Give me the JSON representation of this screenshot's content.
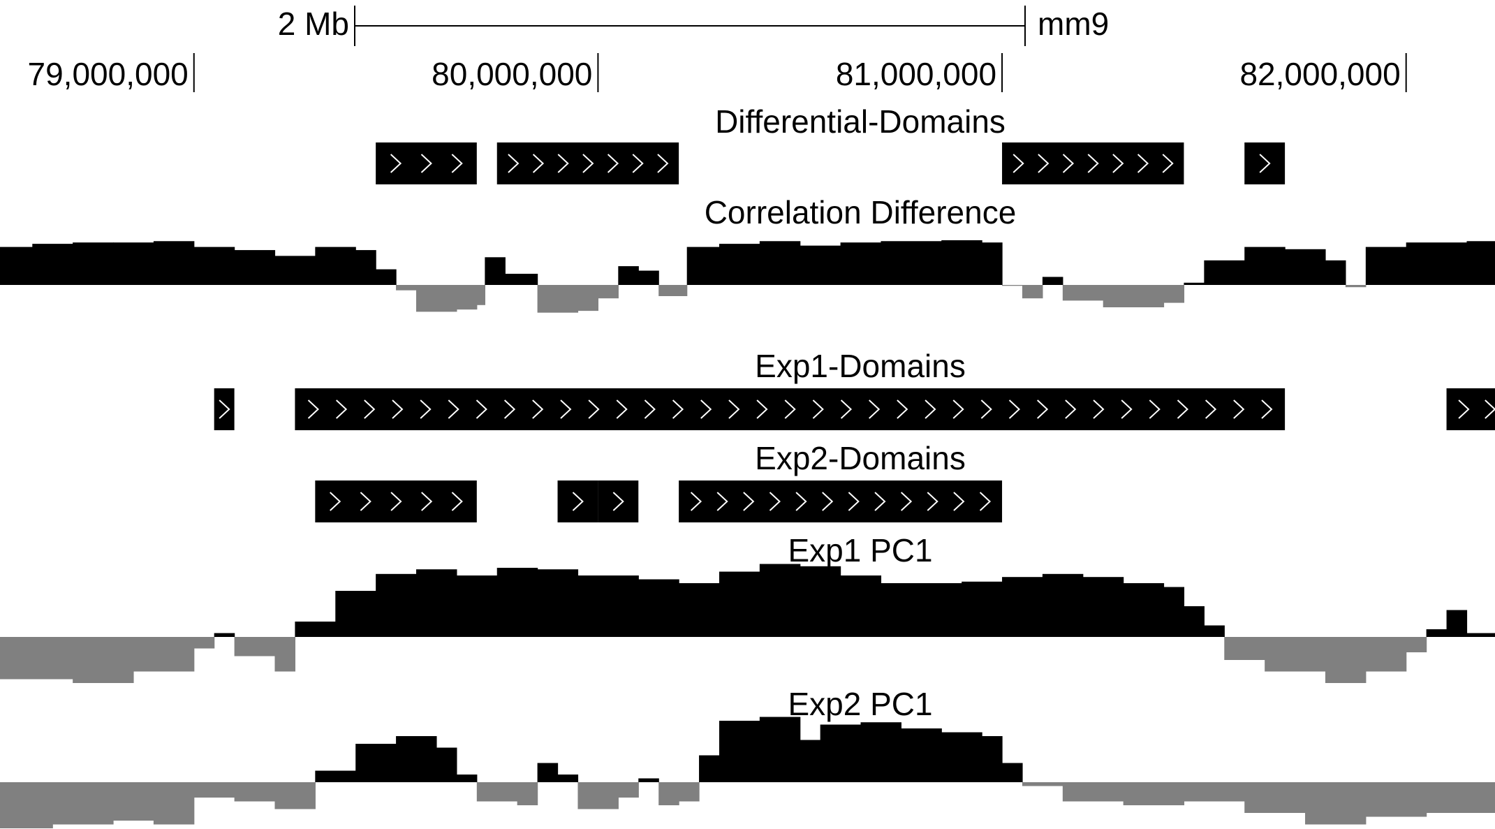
{
  "scale_bar": {
    "label": "2 Mb",
    "assembly": "mm9"
  },
  "ruler": {
    "ticks": [
      "79,000,000",
      "80,000,000",
      "81,000,000",
      "82,000,000"
    ]
  },
  "colors": {
    "positive": "#000000",
    "negative": "#808080",
    "chevron": "#ffffff"
  },
  "tracks": {
    "differential_domains": {
      "title": "Differential-Domains",
      "features": [
        {
          "start": 79.45,
          "end": 79.7,
          "chevrons": 3
        },
        {
          "start": 79.75,
          "end": 80.2,
          "chevrons": 7
        },
        {
          "start": 81.0,
          "end": 81.45,
          "chevrons": 7
        },
        {
          "start": 81.6,
          "end": 81.7,
          "chevrons": 1
        }
      ]
    },
    "correlation_difference": {
      "title": "Correlation Difference",
      "points": [
        [
          78.52,
          0.85
        ],
        [
          78.6,
          0.92
        ],
        [
          78.7,
          0.95
        ],
        [
          78.8,
          0.95
        ],
        [
          78.9,
          0.98
        ],
        [
          79.0,
          0.85
        ],
        [
          79.1,
          0.78
        ],
        [
          79.2,
          0.65
        ],
        [
          79.3,
          0.85
        ],
        [
          79.4,
          0.78
        ],
        [
          79.45,
          0.35
        ],
        [
          79.5,
          -0.12
        ],
        [
          79.55,
          -0.6
        ],
        [
          79.65,
          -0.55
        ],
        [
          79.7,
          -0.45
        ],
        [
          79.72,
          0.62
        ],
        [
          79.77,
          0.25
        ],
        [
          79.85,
          -0.62
        ],
        [
          79.95,
          -0.58
        ],
        [
          80.0,
          -0.3
        ],
        [
          80.05,
          0.42
        ],
        [
          80.1,
          0.32
        ],
        [
          80.15,
          -0.25
        ],
        [
          80.2,
          -0.25
        ],
        [
          80.22,
          0.85
        ],
        [
          80.3,
          0.92
        ],
        [
          80.4,
          0.98
        ],
        [
          80.5,
          0.88
        ],
        [
          80.6,
          0.95
        ],
        [
          80.7,
          0.98
        ],
        [
          80.85,
          1.0
        ],
        [
          80.95,
          0.95
        ],
        [
          81.0,
          -0.02
        ],
        [
          81.05,
          -0.3
        ],
        [
          81.1,
          0.18
        ],
        [
          81.15,
          -0.35
        ],
        [
          81.25,
          -0.5
        ],
        [
          81.4,
          -0.4
        ],
        [
          81.45,
          0.05
        ],
        [
          81.5,
          0.55
        ],
        [
          81.6,
          0.85
        ],
        [
          81.7,
          0.8
        ],
        [
          81.8,
          0.55
        ],
        [
          81.85,
          -0.05
        ],
        [
          81.9,
          0.85
        ],
        [
          82.0,
          0.95
        ],
        [
          82.15,
          0.98
        ],
        [
          82.22,
          0.98
        ]
      ]
    },
    "exp1_domains": {
      "title": "Exp1-Domains",
      "features": [
        {
          "start": 79.05,
          "end": 79.1,
          "chevrons": 1
        },
        {
          "start": 79.25,
          "end": 81.7,
          "chevrons": 35
        },
        {
          "start": 82.1,
          "end": 82.25,
          "chevrons": 2
        }
      ]
    },
    "exp2_domains": {
      "title": "Exp2-Domains",
      "features": [
        {
          "start": 79.3,
          "end": 79.7,
          "chevrons": 5
        },
        {
          "start": 79.9,
          "end": 80.0,
          "chevrons": 1
        },
        {
          "start": 80.0,
          "end": 80.1,
          "chevrons": 1
        },
        {
          "start": 80.2,
          "end": 81.0,
          "chevrons": 12
        }
      ]
    },
    "exp1_pc1": {
      "title": "Exp1 PC1",
      "points": [
        [
          78.52,
          -0.55
        ],
        [
          78.7,
          -0.6
        ],
        [
          78.85,
          -0.45
        ],
        [
          79.0,
          -0.15
        ],
        [
          79.05,
          0.05
        ],
        [
          79.1,
          -0.25
        ],
        [
          79.2,
          -0.45
        ],
        [
          79.25,
          0.2
        ],
        [
          79.35,
          0.6
        ],
        [
          79.45,
          0.82
        ],
        [
          79.55,
          0.88
        ],
        [
          79.65,
          0.8
        ],
        [
          79.75,
          0.9
        ],
        [
          79.85,
          0.88
        ],
        [
          79.95,
          0.8
        ],
        [
          80.1,
          0.75
        ],
        [
          80.2,
          0.7
        ],
        [
          80.3,
          0.85
        ],
        [
          80.4,
          0.95
        ],
        [
          80.5,
          0.92
        ],
        [
          80.6,
          0.8
        ],
        [
          80.7,
          0.7
        ],
        [
          80.8,
          0.7
        ],
        [
          80.9,
          0.72
        ],
        [
          81.0,
          0.78
        ],
        [
          81.1,
          0.82
        ],
        [
          81.2,
          0.78
        ],
        [
          81.3,
          0.7
        ],
        [
          81.4,
          0.65
        ],
        [
          81.45,
          0.4
        ],
        [
          81.5,
          0.15
        ],
        [
          81.55,
          -0.3
        ],
        [
          81.65,
          -0.45
        ],
        [
          81.8,
          -0.6
        ],
        [
          81.9,
          -0.45
        ],
        [
          82.0,
          -0.2
        ],
        [
          82.05,
          0.1
        ],
        [
          82.1,
          0.35
        ],
        [
          82.15,
          0.05
        ],
        [
          82.22,
          -0.5
        ]
      ]
    },
    "exp2_pc1": {
      "title": "Exp2 PC1",
      "points": [
        [
          78.52,
          -0.6
        ],
        [
          78.65,
          -0.55
        ],
        [
          78.8,
          -0.5
        ],
        [
          78.9,
          -0.55
        ],
        [
          79.0,
          -0.2
        ],
        [
          79.1,
          -0.25
        ],
        [
          79.2,
          -0.35
        ],
        [
          79.3,
          0.15
        ],
        [
          79.4,
          0.5
        ],
        [
          79.5,
          0.6
        ],
        [
          79.6,
          0.45
        ],
        [
          79.65,
          0.1
        ],
        [
          79.7,
          -0.25
        ],
        [
          79.8,
          -0.3
        ],
        [
          79.85,
          0.25
        ],
        [
          79.9,
          0.1
        ],
        [
          79.95,
          -0.35
        ],
        [
          80.05,
          -0.2
        ],
        [
          80.1,
          0.05
        ],
        [
          80.15,
          -0.3
        ],
        [
          80.2,
          -0.25
        ],
        [
          80.25,
          0.35
        ],
        [
          80.3,
          0.8
        ],
        [
          80.4,
          0.85
        ],
        [
          80.5,
          0.55
        ],
        [
          80.55,
          0.75
        ],
        [
          80.65,
          0.78
        ],
        [
          80.75,
          0.7
        ],
        [
          80.85,
          0.65
        ],
        [
          80.95,
          0.6
        ],
        [
          81.0,
          0.25
        ],
        [
          81.05,
          -0.05
        ],
        [
          81.15,
          -0.25
        ],
        [
          81.3,
          -0.3
        ],
        [
          81.45,
          -0.25
        ],
        [
          81.6,
          -0.4
        ],
        [
          81.75,
          -0.55
        ],
        [
          81.9,
          -0.45
        ],
        [
          82.05,
          -0.4
        ],
        [
          82.22,
          -0.6
        ]
      ]
    }
  }
}
